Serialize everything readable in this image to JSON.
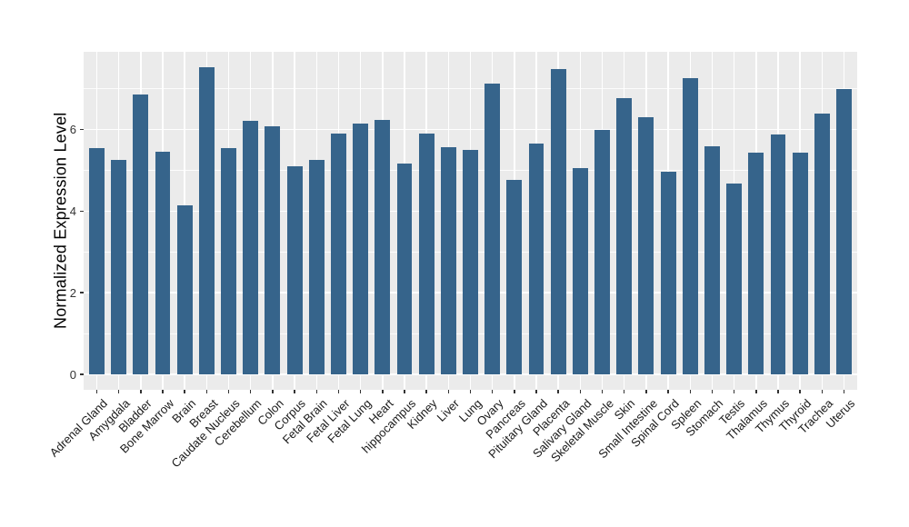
{
  "chart_data": {
    "type": "bar",
    "title": "",
    "xlabel": "",
    "ylabel": "Normalized Expression Level",
    "categories": [
      "Adrenal Gland",
      "Amygdala",
      "Bladder",
      "Bone Marrow",
      "Brain",
      "Breast",
      "Caudate Nucleus",
      "Cerebellum",
      "Colon",
      "Corpus",
      "Fetal Brain",
      "Fetal Liver",
      "Fetal Lung",
      "Heart",
      "hippocampus",
      "Kidney",
      "Liver",
      "Lung",
      "Ovary",
      "Pancreas",
      "Pituitary Gland",
      "Placenta",
      "Salivary Gland",
      "Skeletal Muscle",
      "Skin",
      "Small Intestine",
      "Spinal Cord",
      "Spleen",
      "Stomach",
      "Testis",
      "Thalamus",
      "Thymus",
      "Thyroid",
      "Trachea",
      "Uterus"
    ],
    "values": [
      5.55,
      5.25,
      6.86,
      5.45,
      4.15,
      7.52,
      5.55,
      6.21,
      6.07,
      5.1,
      5.25,
      5.9,
      6.15,
      6.24,
      5.17,
      5.9,
      5.56,
      5.5,
      7.13,
      4.77,
      5.65,
      7.48,
      5.05,
      5.98,
      6.78,
      6.3,
      4.96,
      7.25,
      5.59,
      4.68,
      5.44,
      5.87,
      5.44,
      6.39,
      7.0
    ],
    "ylim": [
      0,
      7.9
    ],
    "yticks": [
      0,
      2,
      4,
      6
    ],
    "yticks_minor": [
      1,
      3,
      5,
      7
    ],
    "x_tick_angle": 45,
    "grid": "on",
    "legend_position": "none",
    "colors": {
      "bar": "#36648B",
      "panel_background": "#EBEBEB",
      "gridline": "#FFFFFF",
      "axis_text_y": "#333333",
      "axis_text_x": "#1a1a1a",
      "axis_title": "#000000",
      "tick_mark": "#333333"
    }
  }
}
